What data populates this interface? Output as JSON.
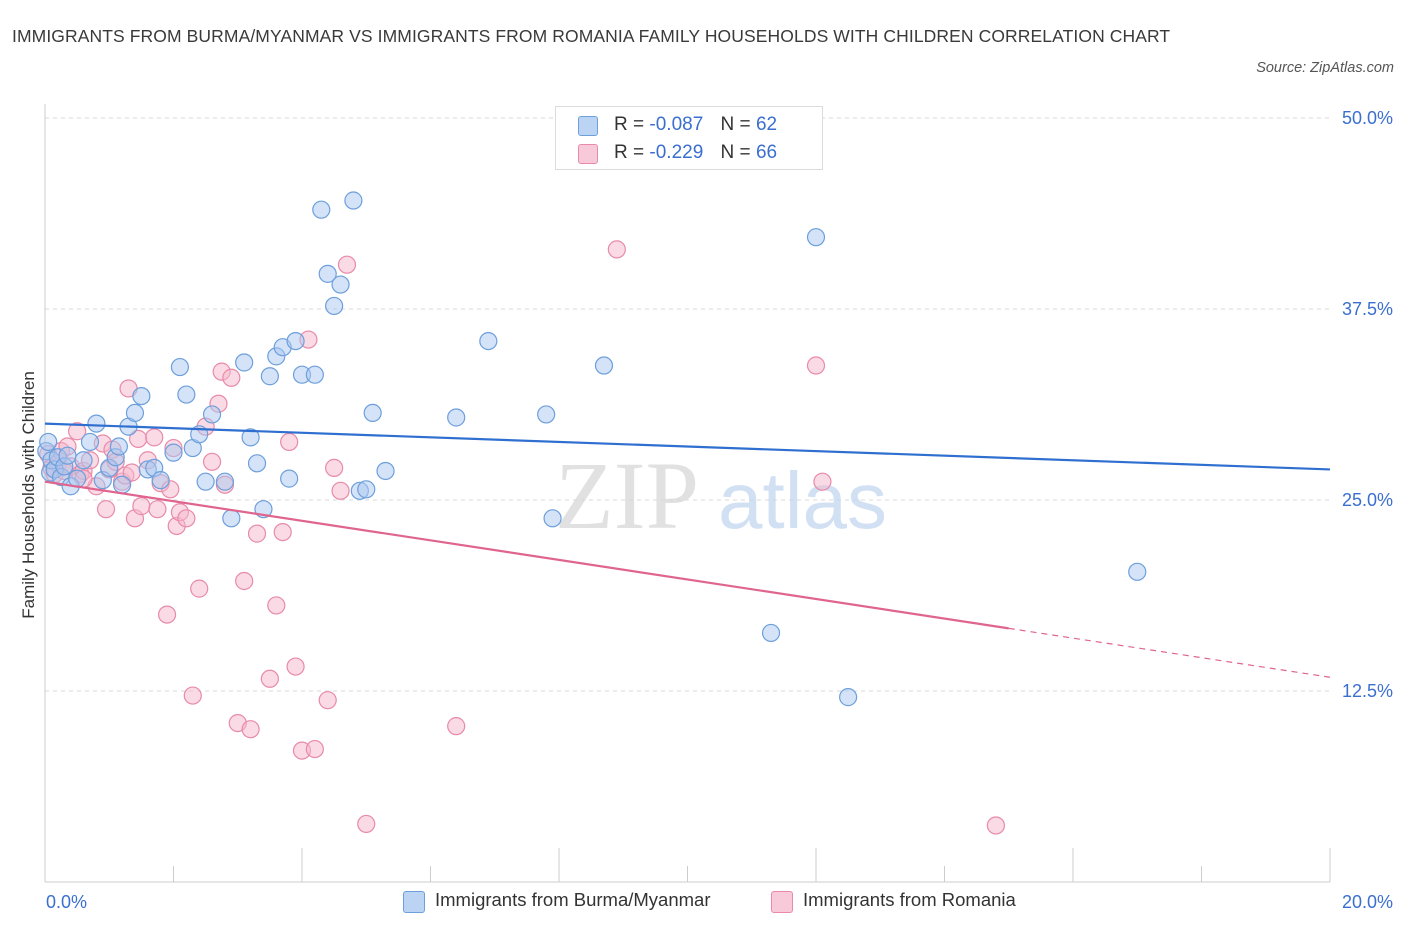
{
  "title": "IMMIGRANTS FROM BURMA/MYANMAR VS IMMIGRANTS FROM ROMANIA FAMILY HOUSEHOLDS WITH CHILDREN CORRELATION CHART",
  "source": "Source: ZipAtlas.com",
  "watermark": {
    "zip": "ZIP",
    "atlas": "atlas"
  },
  "legend_top": [
    {
      "r_label": "R =",
      "r_value": "-0.087",
      "n_label": "N =",
      "n_value": "62"
    },
    {
      "r_label": "R =",
      "r_value": "-0.229",
      "n_label": "N =",
      "n_value": "66"
    }
  ],
  "legend_bottom": [
    {
      "label": "Immigrants from Burma/Myanmar"
    },
    {
      "label": "Immigrants from Romania"
    }
  ],
  "colors": {
    "blue_fill": "#a9c8f0",
    "blue_stroke": "#6d9fdc",
    "blue_line": "#2f6fd0",
    "pink_fill": "#f5b8cc",
    "pink_stroke": "#e88aa8",
    "pink_line": "#e0658e",
    "axis_text": "#3a6fd0",
    "grid": "#d9d9d9"
  },
  "chart_data": {
    "type": "scatter",
    "title": "IMMIGRANTS FROM BURMA/MYANMAR VS IMMIGRANTS FROM ROMANIA FAMILY HOUSEHOLDS WITH CHILDREN CORRELATION CHART",
    "xlabel": "",
    "ylabel": "Family Households with Children",
    "xlim": [
      0,
      20
    ],
    "ylim": [
      0,
      50
    ],
    "x_tick_labels": [
      "0.0%",
      "20.0%"
    ],
    "y_ticks": [
      12.5,
      25.0,
      37.5,
      50.0
    ],
    "y_tick_labels": [
      "12.5%",
      "25.0%",
      "37.5%",
      "50.0%"
    ],
    "grid": true,
    "series": [
      {
        "name": "Immigrants from Burma/Myanmar",
        "color": "blue",
        "trend": {
          "x0": 0,
          "y0": 30.0,
          "x1": 20,
          "y1": 27.0
        },
        "points": [
          [
            0.02,
            28.2
          ],
          [
            0.05,
            28.8
          ],
          [
            0.08,
            26.8
          ],
          [
            0.1,
            27.6
          ],
          [
            0.15,
            27.0
          ],
          [
            0.2,
            27.8
          ],
          [
            0.25,
            26.5
          ],
          [
            0.3,
            27.2
          ],
          [
            0.35,
            27.9
          ],
          [
            0.4,
            25.9
          ],
          [
            0.5,
            26.4
          ],
          [
            0.6,
            27.6
          ],
          [
            0.7,
            28.8
          ],
          [
            0.8,
            30.0
          ],
          [
            0.9,
            26.3
          ],
          [
            1.0,
            27.1
          ],
          [
            1.1,
            27.8
          ],
          [
            1.15,
            28.5
          ],
          [
            1.2,
            26.0
          ],
          [
            1.3,
            29.8
          ],
          [
            1.4,
            30.7
          ],
          [
            1.5,
            31.8
          ],
          [
            1.6,
            27.0
          ],
          [
            1.7,
            27.1
          ],
          [
            1.8,
            26.3
          ],
          [
            2.0,
            28.1
          ],
          [
            2.1,
            33.7
          ],
          [
            2.2,
            31.9
          ],
          [
            2.3,
            28.4
          ],
          [
            2.4,
            29.3
          ],
          [
            2.5,
            26.2
          ],
          [
            2.6,
            30.6
          ],
          [
            2.8,
            26.2
          ],
          [
            2.9,
            23.8
          ],
          [
            3.1,
            34.0
          ],
          [
            3.2,
            29.1
          ],
          [
            3.3,
            27.4
          ],
          [
            3.4,
            24.4
          ],
          [
            3.5,
            33.1
          ],
          [
            3.6,
            34.4
          ],
          [
            3.7,
            35.0
          ],
          [
            3.8,
            26.4
          ],
          [
            3.9,
            35.4
          ],
          [
            4.0,
            33.2
          ],
          [
            4.2,
            33.2
          ],
          [
            4.3,
            44.0
          ],
          [
            4.4,
            39.8
          ],
          [
            4.5,
            37.7
          ],
          [
            4.6,
            39.1
          ],
          [
            4.8,
            44.6
          ],
          [
            4.9,
            25.6
          ],
          [
            5.0,
            25.7
          ],
          [
            5.1,
            30.7
          ],
          [
            5.3,
            26.9
          ],
          [
            6.4,
            30.4
          ],
          [
            6.9,
            35.4
          ],
          [
            7.8,
            30.6
          ],
          [
            7.9,
            23.8
          ],
          [
            8.7,
            33.8
          ],
          [
            11.3,
            16.3
          ],
          [
            12.0,
            42.2
          ],
          [
            12.5,
            12.1
          ],
          [
            17.0,
            20.3
          ]
        ]
      },
      {
        "name": "Immigrants from Romania",
        "color": "pink",
        "trend": {
          "x0": 0,
          "y0": 26.2,
          "x1": 15.0,
          "y1": 16.6,
          "dash_x1": 20,
          "dash_y1": 13.4
        },
        "points": [
          [
            0.05,
            28.0
          ],
          [
            0.1,
            27.1
          ],
          [
            0.15,
            26.7
          ],
          [
            0.2,
            27.4
          ],
          [
            0.25,
            28.2
          ],
          [
            0.3,
            26.9
          ],
          [
            0.35,
            28.5
          ],
          [
            0.4,
            27.2
          ],
          [
            0.5,
            29.5
          ],
          [
            0.55,
            26.7
          ],
          [
            0.6,
            26.9
          ],
          [
            0.7,
            27.6
          ],
          [
            0.8,
            25.9
          ],
          [
            0.9,
            28.7
          ],
          [
            0.95,
            24.4
          ],
          [
            1.0,
            27.0
          ],
          [
            1.05,
            28.3
          ],
          [
            1.1,
            27.5
          ],
          [
            1.2,
            26.2
          ],
          [
            1.25,
            26.6
          ],
          [
            1.3,
            32.3
          ],
          [
            1.4,
            23.8
          ],
          [
            1.45,
            29.0
          ],
          [
            1.5,
            24.6
          ],
          [
            1.6,
            27.6
          ],
          [
            1.7,
            29.1
          ],
          [
            1.75,
            24.4
          ],
          [
            1.8,
            26.1
          ],
          [
            1.9,
            17.5
          ],
          [
            1.95,
            25.7
          ],
          [
            2.0,
            28.4
          ],
          [
            2.05,
            23.3
          ],
          [
            2.1,
            24.2
          ],
          [
            2.2,
            23.8
          ],
          [
            2.3,
            12.2
          ],
          [
            2.4,
            19.2
          ],
          [
            2.5,
            29.8
          ],
          [
            2.6,
            27.5
          ],
          [
            2.7,
            31.3
          ],
          [
            2.75,
            33.4
          ],
          [
            2.8,
            26.0
          ],
          [
            2.9,
            33.0
          ],
          [
            3.0,
            10.4
          ],
          [
            3.1,
            19.7
          ],
          [
            3.2,
            10.0
          ],
          [
            3.3,
            22.8
          ],
          [
            3.5,
            13.3
          ],
          [
            3.6,
            18.1
          ],
          [
            3.7,
            22.9
          ],
          [
            3.8,
            28.8
          ],
          [
            3.9,
            14.1
          ],
          [
            4.0,
            8.6
          ],
          [
            4.1,
            35.5
          ],
          [
            4.2,
            8.7
          ],
          [
            4.4,
            11.9
          ],
          [
            4.5,
            27.1
          ],
          [
            4.6,
            25.6
          ],
          [
            4.7,
            40.4
          ],
          [
            5.0,
            3.8
          ],
          [
            6.4,
            10.2
          ],
          [
            8.9,
            41.4
          ],
          [
            12.0,
            33.8
          ],
          [
            12.1,
            26.2
          ],
          [
            14.8,
            3.7
          ],
          [
            0.6,
            26.4
          ],
          [
            1.35,
            26.8
          ]
        ]
      }
    ]
  }
}
